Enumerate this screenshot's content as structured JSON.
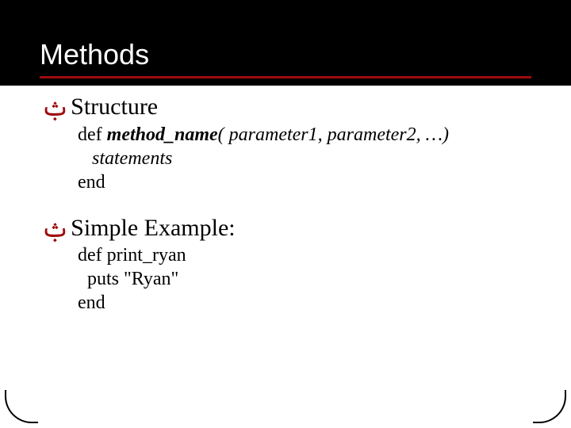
{
  "colors": {
    "header_bg": "#000000",
    "accent": "#9e0b0e",
    "slide_bg": "#ffffff",
    "body_text": "#000000",
    "title_text": "#ffffff"
  },
  "typography": {
    "title_family": "Arial",
    "title_size_pt": 36,
    "bullet_size_pt": 30,
    "sub_size_pt": 24,
    "body_family": "Times New Roman"
  },
  "title": "Methods",
  "bullet_glyph": "ݑ",
  "sections": [
    {
      "heading": "Structure",
      "lines": [
        {
          "prefix": "def ",
          "bolditalic": "method_name",
          "italic_rest": "( parameter1, parameter2, …)"
        },
        {
          "indent": true,
          "italic": "statements"
        },
        {
          "plain": "end"
        }
      ]
    },
    {
      "heading": "Simple Example:",
      "lines": [
        {
          "plain": "def print_ryan"
        },
        {
          "indent": true,
          "plain": "puts \"Ryan\""
        },
        {
          "plain": "end"
        }
      ]
    }
  ]
}
